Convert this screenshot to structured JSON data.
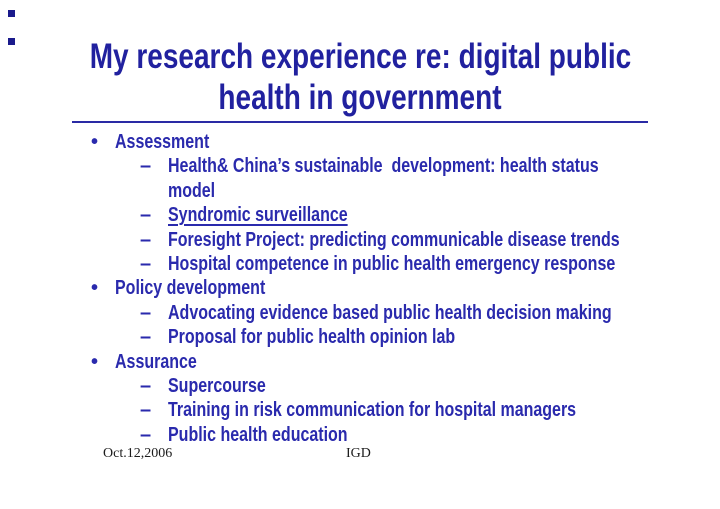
{
  "slide": {
    "title": {
      "full": "My research experience re: digital public health in government",
      "lines": [
        "My research experience re: digital public",
        "health in government"
      ]
    },
    "footer": {
      "date": "Oct.12,2006",
      "author": "IGD"
    }
  },
  "bullets": {
    "level1": "•",
    "level2": "–"
  },
  "outline": [
    {
      "level": 1,
      "text": "Assessment"
    },
    {
      "level": 2,
      "text": "Health& China’s sustainable  development: health status\nmodel"
    },
    {
      "level": 2,
      "text": "Syndromic surveillance",
      "underline": true
    },
    {
      "level": 2,
      "text": "Foresight Project: predicting communicable disease trends"
    },
    {
      "level": 2,
      "text": "Hospital competence in public health emergency response"
    },
    {
      "level": 1,
      "text": "Policy development"
    },
    {
      "level": 2,
      "text": "Advocating evidence based public health decision making"
    },
    {
      "level": 2,
      "text": "Proposal for public health opinion lab"
    },
    {
      "level": 1,
      "text": "Assurance"
    },
    {
      "level": 2,
      "text": "Supercourse"
    },
    {
      "level": 2,
      "text": "Training in risk communication for hospital managers"
    },
    {
      "level": 2,
      "text": "Public health education"
    }
  ],
  "colors": {
    "title_blue": "#21219f",
    "body_blue": "#2a2aad",
    "rule_blue": "#2a2aa4",
    "square_navy": "#1a1a8c",
    "footer_text": "#1c1c1c"
  }
}
